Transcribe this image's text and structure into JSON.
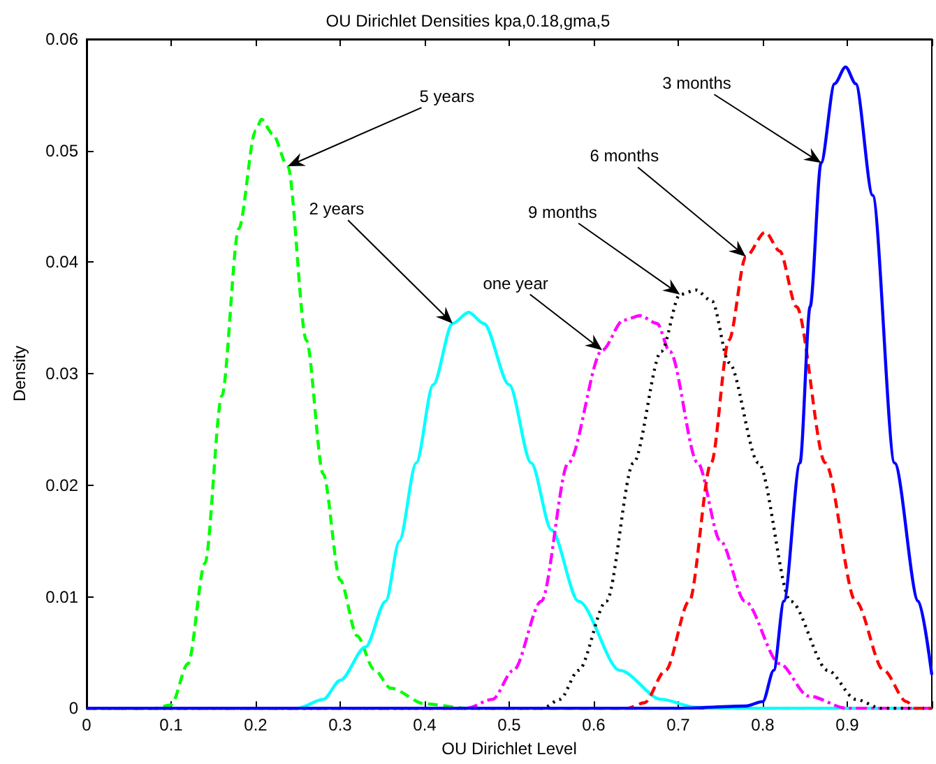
{
  "chart_data": {
    "type": "line",
    "title": "OU Dirichlet Densities kpa,0.18,gma,5",
    "xlabel": "OU Dirichlet Level",
    "ylabel": "Density",
    "xlim": [
      0,
      1
    ],
    "xticks": [
      0,
      0.1,
      0.2,
      0.3,
      0.4,
      0.5,
      0.6,
      0.7,
      0.8,
      0.9,
      {
        "value": 1,
        "label": null
      }
    ],
    "ylim": [
      0,
      0.06
    ],
    "yticks": [
      0,
      0.01,
      0.02,
      0.03,
      0.04,
      0.05,
      0.06
    ],
    "grid": false,
    "marker": "none",
    "series": [
      {
        "color": "#00ff00",
        "line_style": "dashed",
        "x": [
          0,
          0.08,
          0.1,
          0.12,
          0.14,
          0.16,
          0.18,
          0.2,
          0.207,
          0.22,
          0.238,
          0.26,
          0.28,
          0.3,
          0.32,
          0.34,
          0.36,
          0.4,
          0.45,
          1
        ],
        "values": [
          0,
          0,
          0.0003,
          0.004,
          0.013,
          0.028,
          0.043,
          0.0518,
          0.0528,
          0.0515,
          0.0486,
          0.033,
          0.021,
          0.0115,
          0.0065,
          0.0035,
          0.0018,
          0.0004,
          0,
          0
        ]
      },
      {
        "color": "#00ffff",
        "line_style": "solid",
        "x": [
          0,
          0.25,
          0.28,
          0.3,
          0.33,
          0.354,
          0.37,
          0.39,
          0.41,
          0.433,
          0.452,
          0.47,
          0.5,
          0.526,
          0.55,
          0.582,
          0.631,
          0.68,
          0.72,
          0.75,
          1
        ],
        "values": [
          0,
          0,
          0.0008,
          0.0025,
          0.0055,
          0.0096,
          0.015,
          0.022,
          0.029,
          0.0345,
          0.0355,
          0.0345,
          0.029,
          0.022,
          0.016,
          0.0096,
          0.0034,
          0.0008,
          0.0001,
          0,
          0
        ]
      },
      {
        "color": "#ff00ff",
        "line_style": "dashdot",
        "x": [
          0,
          0.45,
          0.48,
          0.505,
          0.538,
          0.57,
          0.61,
          0.635,
          0.655,
          0.675,
          0.69,
          0.723,
          0.75,
          0.779,
          0.82,
          0.854,
          0.9,
          1
        ],
        "values": [
          0,
          0,
          0.0008,
          0.0034,
          0.0096,
          0.022,
          0.0321,
          0.0348,
          0.0352,
          0.0345,
          0.032,
          0.022,
          0.015,
          0.0096,
          0.004,
          0.0011,
          0,
          0
        ]
      },
      {
        "color": "#000000",
        "line_style": "dotted",
        "x": [
          0,
          0.54,
          0.56,
          0.582,
          0.615,
          0.647,
          0.68,
          0.702,
          0.721,
          0.74,
          0.76,
          0.795,
          0.833,
          0.877,
          0.91,
          0.94,
          1
        ],
        "values": [
          0,
          0,
          0.0008,
          0.0034,
          0.0096,
          0.022,
          0.032,
          0.0371,
          0.0375,
          0.0365,
          0.031,
          0.022,
          0.0096,
          0.0034,
          0.0008,
          0,
          0
        ]
      },
      {
        "color": "#ff0000",
        "line_style": "dashed",
        "x": [
          0,
          0.64,
          0.66,
          0.685,
          0.713,
          0.739,
          0.76,
          0.78,
          0.803,
          0.82,
          0.84,
          0.874,
          0.91,
          0.943,
          0.97,
          0.98,
          1
        ],
        "values": [
          0,
          0,
          0.0005,
          0.0034,
          0.0096,
          0.022,
          0.033,
          0.0405,
          0.0427,
          0.041,
          0.036,
          0.022,
          0.0096,
          0.0034,
          0.0006,
          0,
          0
        ]
      },
      {
        "color": "#0000ff",
        "line_style": "solid",
        "x": [
          0,
          0.7,
          0.78,
          0.8,
          0.813,
          0.825,
          0.844,
          0.856,
          0.869,
          0.885,
          0.898,
          0.91,
          0.93,
          0.956,
          0.984,
          1
        ],
        "values": [
          0,
          0,
          0.0002,
          0.0006,
          0.0034,
          0.0096,
          0.022,
          0.036,
          0.0489,
          0.056,
          0.0575,
          0.056,
          0.046,
          0.022,
          0.0096,
          0.003
        ]
      }
    ],
    "annotations": [
      {
        "text": "5 years",
        "x": 0.238,
        "y": 0.0486
      },
      {
        "text": "2 years",
        "x": 0.433,
        "y": 0.0345
      },
      {
        "text": "one year",
        "x": 0.61,
        "y": 0.0321
      },
      {
        "text": "9 months",
        "x": 0.702,
        "y": 0.0371
      },
      {
        "text": "6 months",
        "x": 0.78,
        "y": 0.0405
      },
      {
        "text": "3 months",
        "x": 0.869,
        "y": 0.0489
      }
    ]
  }
}
